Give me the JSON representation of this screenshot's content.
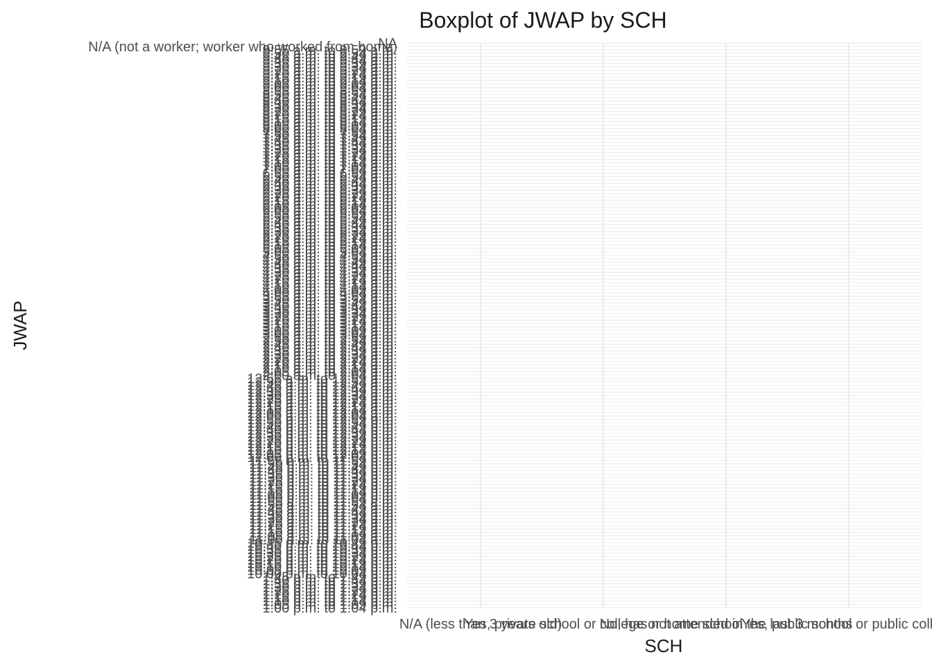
{
  "chart_data": {
    "type": "boxplot",
    "title": "Boxplot of JWAP by SCH",
    "xlabel": "SCH",
    "ylabel": "JWAP",
    "grid": true,
    "legend": "none",
    "x_categories": [
      "N/A (less than 3 years old)",
      "Yes, private school or college or home school",
      "No, has not attended in the last 3 months",
      "Yes, public school or public college"
    ],
    "y_categories": [
      "1:00 p.m. to 1:04 p.m.",
      "1:05 p.m. to 1:09 p.m.",
      "1:10 p.m. to 1:14 p.m.",
      "1:15 p.m. to 1:19 p.m.",
      "1:20 p.m. to 1:24 p.m.",
      "1:25 p.m. to 1:29 p.m.",
      "1:30 p.m. to 1:34 p.m.",
      "1:35 p.m. to 1:39 p.m.",
      "1:40 p.m. to 1:44 p.m.",
      "1:45 p.m. to 1:49 p.m.",
      "10:00 p.m. to 10:04 p.m.",
      "10:05 p.m. to 10:09 p.m.",
      "10:10 p.m. to 10:14 p.m.",
      "10:15 p.m. to 10:19 p.m.",
      "10:20 p.m. to 10:24 p.m.",
      "10:25 p.m. to 10:29 p.m.",
      "10:30 p.m. to 10:34 p.m.",
      "10:35 p.m. to 10:39 p.m.",
      "10:40 p.m. to 10:44 p.m.",
      "10:45 p.m. to 10:49 p.m.",
      "11:00 a.m. to 11:04 a.m.",
      "11:05 a.m. to 11:09 a.m.",
      "11:10 a.m. to 11:14 a.m.",
      "11:15 a.m. to 11:19 a.m.",
      "11:20 a.m. to 11:24 a.m.",
      "11:25 a.m. to 11:29 a.m.",
      "11:30 a.m. to 11:34 a.m.",
      "11:35 a.m. to 11:39 a.m.",
      "11:40 a.m. to 11:44 a.m.",
      "11:45 a.m. to 11:49 a.m.",
      "11:50 a.m. to 11:54 a.m.",
      "11:55 a.m. to 11:59 a.m.",
      "11:00 p.m. to 11:04 p.m.",
      "11:05 p.m. to 11:09 p.m.",
      "11:10 p.m. to 11:14 p.m.",
      "11:15 p.m. to 11:19 p.m.",
      "11:20 p.m. to 11:24 p.m.",
      "11:25 p.m. to 11:29 p.m.",
      "11:30 p.m. to 11:34 p.m.",
      "11:35 p.m. to 11:39 p.m.",
      "11:40 p.m. to 11:44 p.m.",
      "11:45 p.m. to 11:49 p.m.",
      "11:50 p.m. to 11:54 p.m.",
      "11:55 p.m. to 11:59 p.m.",
      "12:00 p.m. to 12:04 p.m.",
      "12:05 p.m. to 12:09 p.m.",
      "12:10 p.m. to 12:14 p.m.",
      "12:15 p.m. to 12:19 p.m.",
      "12:20 p.m. to 12:24 p.m.",
      "12:25 p.m. to 12:29 p.m.",
      "12:30 p.m. to 12:34 p.m.",
      "12:35 p.m. to 12:39 p.m.",
      "12:40 p.m. to 12:44 p.m.",
      "12:45 p.m. to 12:49 p.m.",
      "12:50 p.m. to 12:54 p.m.",
      "12:55 p.m. to 12:59 p.m.",
      "12:00 a.m. to 12:04 a.m.",
      "12:05 a.m. to 12:09 a.m.",
      "12:10 a.m. to 12:14 a.m.",
      "12:15 a.m. to 12:19 a.m.",
      "12:20 a.m. to 12:24 a.m.",
      "12:25 a.m. to 12:29 a.m.",
      "12:30 a.m. to 12:34 a.m.",
      "12:35 a.m. to 12:39 a.m.",
      "12:40 a.m. to 12:44 a.m.",
      "12:45 a.m. to 12:49 a.m.",
      "12:50 a.m. to 12:54 a.m.",
      "12:55 a.m. to 12:59 a.m.",
      "2:00 a.m. to 2:04 a.m.",
      "2:05 a.m. to 2:09 a.m.",
      "2:10 a.m. to 2:14 a.m.",
      "2:15 a.m. to 2:19 a.m.",
      "2:20 a.m. to 2:24 a.m.",
      "2:25 a.m. to 2:29 a.m.",
      "2:30 a.m. to 2:34 a.m.",
      "2:35 a.m. to 2:39 a.m.",
      "2:40 a.m. to 2:44 a.m.",
      "2:45 a.m. to 2:49 a.m.",
      "2:50 a.m. to 2:54 a.m.",
      "2:55 a.m. to 2:59 a.m.",
      "3:00 a.m. to 3:04 a.m.",
      "3:05 a.m. to 3:09 a.m.",
      "3:10 a.m. to 3:14 a.m.",
      "3:15 a.m. to 3:19 a.m.",
      "3:20 a.m. to 3:24 a.m.",
      "3:25 a.m. to 3:29 a.m.",
      "3:30 a.m. to 3:34 a.m.",
      "3:35 a.m. to 3:39 a.m.",
      "3:40 a.m. to 3:44 a.m.",
      "3:45 a.m. to 3:49 a.m.",
      "3:50 a.m. to 3:54 a.m.",
      "3:55 a.m. to 3:59 a.m.",
      "4:00 a.m. to 4:04 a.m.",
      "4:05 a.m. to 4:09 a.m.",
      "4:10 a.m. to 4:14 a.m.",
      "4:15 a.m. to 4:19 a.m.",
      "4:20 a.m. to 4:24 a.m.",
      "4:25 a.m. to 4:29 a.m.",
      "4:30 a.m. to 4:34 a.m.",
      "4:35 a.m. to 4:39 a.m.",
      "4:40 a.m. to 4:44 a.m.",
      "4:45 a.m. to 4:49 a.m.",
      "4:50 a.m. to 4:54 a.m.",
      "4:55 a.m. to 4:59 a.m.",
      "5:00 a.m. to 5:04 a.m.",
      "5:05 a.m. to 5:09 a.m.",
      "5:10 a.m. to 5:14 a.m.",
      "5:15 a.m. to 5:19 a.m.",
      "5:20 a.m. to 5:24 a.m.",
      "5:25 a.m. to 5:29 a.m.",
      "5:30 a.m. to 5:34 a.m.",
      "5:35 a.m. to 5:39 a.m.",
      "5:40 a.m. to 5:44 a.m.",
      "5:45 a.m. to 5:49 a.m.",
      "5:50 a.m. to 5:54 a.m.",
      "5:55 a.m. to 5:59 a.m.",
      "6:00 a.m. to 6:04 a.m.",
      "6:05 a.m. to 6:09 a.m.",
      "6:10 a.m. to 6:14 a.m.",
      "6:15 a.m. to 6:19 a.m.",
      "6:20 a.m. to 6:24 a.m.",
      "6:25 a.m. to 6:29 a.m.",
      "6:30 a.m. to 6:34 a.m.",
      "6:35 a.m. to 6:39 a.m.",
      "6:40 a.m. to 6:44 a.m.",
      "6:45 a.m. to 6:49 a.m.",
      "6:50 a.m. to 6:54 a.m.",
      "6:55 a.m. to 6:59 a.m.",
      "7:00 a.m. to 7:04 a.m.",
      "7:05 a.m. to 7:09 a.m.",
      "7:10 a.m. to 7:14 a.m.",
      "7:15 a.m. to 7:19 a.m.",
      "7:20 a.m. to 7:24 a.m.",
      "7:25 a.m. to 7:29 a.m.",
      "7:30 a.m. to 7:34 a.m.",
      "7:35 a.m. to 7:39 a.m.",
      "7:40 a.m. to 7:44 a.m.",
      "7:45 a.m. to 7:49 a.m.",
      "7:50 a.m. to 7:54 a.m.",
      "7:55 a.m. to 7:59 a.m.",
      "8:00 a.m. to 8:04 a.m.",
      "8:05 a.m. to 8:09 a.m.",
      "8:10 a.m. to 8:14 a.m.",
      "8:15 a.m. to 8:19 a.m.",
      "8:20 a.m. to 8:24 a.m.",
      "8:25 a.m. to 8:29 a.m.",
      "8:30 a.m. to 8:34 a.m.",
      "8:35 a.m. to 8:39 a.m.",
      "8:40 a.m. to 8:44 a.m.",
      "8:45 a.m. to 8:49 a.m.",
      "8:50 a.m. to 8:54 a.m.",
      "8:55 a.m. to 8:59 a.m.",
      "9:00 a.m. to 9:04 a.m.",
      "9:05 a.m. to 9:09 a.m.",
      "9:10 a.m. to 9:14 a.m.",
      "9:15 a.m. to 9:19 a.m.",
      "9:20 a.m. to 9:24 a.m.",
      "9:25 a.m. to 9:29 a.m.",
      "9:30 a.m. to 9:34 a.m.",
      "9:35 a.m. to 9:39 a.m.",
      "9:40 a.m. to 9:44 a.m.",
      "9:45 a.m. to 9:49 a.m.",
      "9:50 a.m. to 9:54 a.m.",
      "9:55 a.m. to 9:59 a.m.",
      "N/A (not a worker; worker who worked from home)",
      "NA"
    ],
    "values": []
  },
  "colors": {
    "background": "#ffffff",
    "grid": "#ebebeb",
    "text": "#1a1a1a",
    "tick_text": "#4d4d4d"
  }
}
